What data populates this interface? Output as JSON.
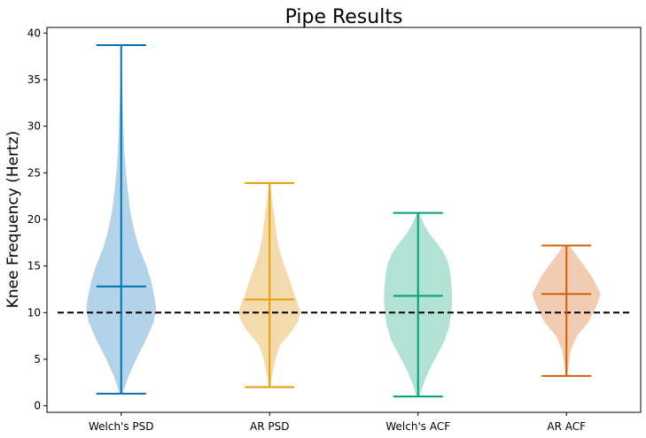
{
  "chart_data": {
    "type": "violin",
    "title": "Pipe Results",
    "xlabel": "",
    "ylabel": "Knee Frequency (Hertz)",
    "ylim": [
      -0.7,
      40.6
    ],
    "yticks": [
      0,
      5,
      10,
      15,
      20,
      25,
      30,
      35,
      40
    ],
    "reference_line": {
      "y": 10,
      "style": "dashed",
      "color": "#000000"
    },
    "grid": false,
    "series": [
      {
        "category": "Welch's PSD",
        "color": "#0072B2",
        "fill": "#b2d3e8",
        "min": 1.3,
        "max": 38.7,
        "mean": 12.8,
        "density": [
          [
            1.3,
            0.02
          ],
          [
            3,
            0.09
          ],
          [
            5,
            0.2
          ],
          [
            7,
            0.33
          ],
          [
            9,
            0.44
          ],
          [
            10.5,
            0.47
          ],
          [
            12,
            0.44
          ],
          [
            13.5,
            0.4
          ],
          [
            15,
            0.34
          ],
          [
            17,
            0.24
          ],
          [
            19,
            0.17
          ],
          [
            21,
            0.12
          ],
          [
            23,
            0.09
          ],
          [
            25,
            0.065
          ],
          [
            27,
            0.045
          ],
          [
            30,
            0.03
          ],
          [
            33,
            0.018
          ],
          [
            36,
            0.008
          ],
          [
            38.7,
            0.002
          ]
        ]
      },
      {
        "category": "AR PSD",
        "color": "#E69F00",
        "fill": "#f4dbad",
        "min": 2.0,
        "max": 23.9,
        "mean": 11.4,
        "density": [
          [
            2.0,
            0.01
          ],
          [
            3.5,
            0.04
          ],
          [
            5,
            0.08
          ],
          [
            6.5,
            0.14
          ],
          [
            8,
            0.3
          ],
          [
            9,
            0.38
          ],
          [
            10,
            0.42
          ],
          [
            11,
            0.38
          ],
          [
            12,
            0.33
          ],
          [
            13.5,
            0.27
          ],
          [
            15,
            0.2
          ],
          [
            16.5,
            0.14
          ],
          [
            18,
            0.1
          ],
          [
            20,
            0.07
          ],
          [
            22,
            0.035
          ],
          [
            23.9,
            0.005
          ]
        ]
      },
      {
        "category": "Welch's ACF",
        "color": "#009E73",
        "fill": "#b2e2d5",
        "min": 1.0,
        "max": 20.7,
        "mean": 11.8,
        "density": [
          [
            1.0,
            0.02
          ],
          [
            2.5,
            0.08
          ],
          [
            4,
            0.16
          ],
          [
            5.5,
            0.26
          ],
          [
            7,
            0.36
          ],
          [
            8.5,
            0.42
          ],
          [
            10,
            0.45
          ],
          [
            11.5,
            0.46
          ],
          [
            13,
            0.45
          ],
          [
            14.5,
            0.43
          ],
          [
            15.5,
            0.4
          ],
          [
            16.5,
            0.34
          ],
          [
            17.5,
            0.25
          ],
          [
            18.5,
            0.15
          ],
          [
            19.5,
            0.08
          ],
          [
            20.7,
            0.015
          ]
        ]
      },
      {
        "category": "AR ACF",
        "color": "#D55E00",
        "fill": "#f2ccb2",
        "min": 3.2,
        "max": 17.2,
        "mean": 12.0,
        "density": [
          [
            3.2,
            0.01
          ],
          [
            4.5,
            0.03
          ],
          [
            6,
            0.06
          ],
          [
            7.5,
            0.14
          ],
          [
            9,
            0.3
          ],
          [
            10,
            0.36
          ],
          [
            11,
            0.42
          ],
          [
            12,
            0.46
          ],
          [
            13,
            0.4
          ],
          [
            14,
            0.33
          ],
          [
            15,
            0.24
          ],
          [
            16,
            0.15
          ],
          [
            17.2,
            0.04
          ]
        ]
      }
    ]
  }
}
